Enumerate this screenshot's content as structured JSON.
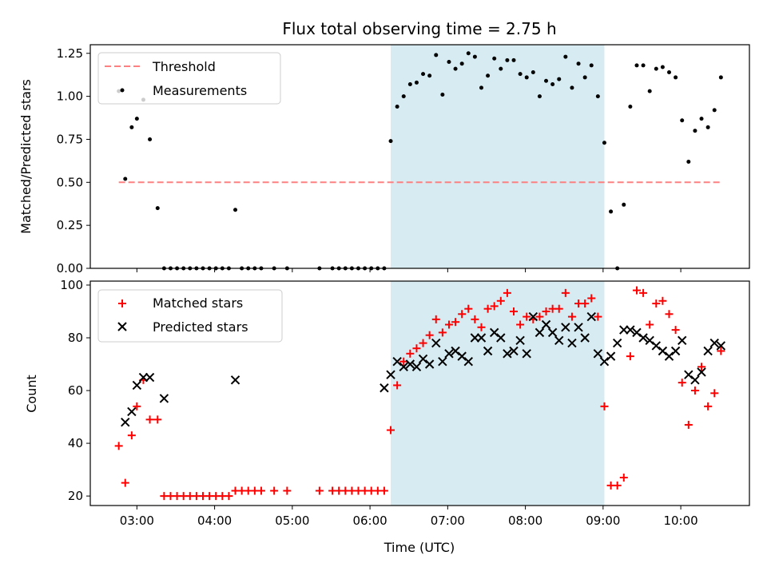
{
  "chart_data": [
    {
      "type": "scatter",
      "title": "Flux total observing time = 2.75 h",
      "xlabel": "",
      "ylabel": "Matched/Predicted stars",
      "xlim": [
        "02:24",
        "10:53"
      ],
      "ylim": [
        0,
        1.3
      ],
      "yticks": [
        "0.00",
        "0.25",
        "0.50",
        "0.75",
        "1.00",
        "1.25"
      ],
      "highlight_span": [
        "06:16",
        "09:01"
      ],
      "highlight_color": "#add8e6",
      "legend": {
        "position": "top-left",
        "entries": [
          "Threshold",
          "Measurements"
        ]
      },
      "threshold": {
        "name": "Threshold",
        "value": 0.5,
        "x_range": [
          "02:46",
          "10:32"
        ],
        "color": "#ff8080",
        "style": "dashed"
      },
      "series": [
        {
          "name": "Measurements",
          "color": "#000000",
          "marker": "dot",
          "x": [
            "02:46",
            "02:51",
            "02:56",
            "03:00",
            "03:05",
            "03:10",
            "03:16",
            "03:21",
            "03:26",
            "03:31",
            "03:36",
            "03:41",
            "03:46",
            "03:51",
            "03:56",
            "04:01",
            "04:06",
            "04:11",
            "04:16",
            "04:21",
            "04:26",
            "04:31",
            "04:36",
            "04:46",
            "04:56",
            "05:21",
            "05:31",
            "05:36",
            "05:41",
            "05:46",
            "05:51",
            "05:56",
            "06:01",
            "06:06",
            "06:11",
            "06:16",
            "06:21",
            "06:26",
            "06:31",
            "06:36",
            "06:41",
            "06:46",
            "06:51",
            "06:56",
            "07:01",
            "07:06",
            "07:11",
            "07:16",
            "07:21",
            "07:26",
            "07:31",
            "07:36",
            "07:41",
            "07:46",
            "07:51",
            "07:56",
            "08:01",
            "08:06",
            "08:11",
            "08:16",
            "08:21",
            "08:26",
            "08:31",
            "08:36",
            "08:41",
            "08:46",
            "08:51",
            "08:56",
            "09:01",
            "09:06",
            "09:11",
            "09:16",
            "09:21",
            "09:26",
            "09:31",
            "09:36",
            "09:41",
            "09:46",
            "09:51",
            "09:56",
            "10:01",
            "10:06",
            "10:11",
            "10:16",
            "10:21",
            "10:26",
            "10:31"
          ],
          "y": [
            1.03,
            0.52,
            0.82,
            0.87,
            0.98,
            0.75,
            0.35,
            0.0,
            0.0,
            0.0,
            0.0,
            0.0,
            0.0,
            0.0,
            0.0,
            0.0,
            0.0,
            0.0,
            0.34,
            0.0,
            0.0,
            0.0,
            0.0,
            0.0,
            0.0,
            0.0,
            0.0,
            0.0,
            0.0,
            0.0,
            0.0,
            0.0,
            0.0,
            0.0,
            0.0,
            0.74,
            0.94,
            1.0,
            1.07,
            1.08,
            1.13,
            1.12,
            1.24,
            1.01,
            1.2,
            1.16,
            1.19,
            1.25,
            1.23,
            1.05,
            1.12,
            1.22,
            1.16,
            1.21,
            1.21,
            1.13,
            1.11,
            1.14,
            1.0,
            1.09,
            1.07,
            1.1,
            1.23,
            1.05,
            1.19,
            1.11,
            1.18,
            1.0,
            0.73,
            0.33,
            0.0,
            0.37,
            0.94,
            1.18,
            1.18,
            1.03,
            1.16,
            1.17,
            1.14,
            1.11,
            0.86,
            0.62,
            0.8,
            0.87,
            0.82,
            0.92,
            1.11
          ]
        }
      ]
    },
    {
      "type": "scatter",
      "title": "",
      "xlabel": "Time (UTC)",
      "ylabel": "Count",
      "xlim": [
        "02:24",
        "10:53"
      ],
      "xticks": [
        "03:00",
        "04:00",
        "05:00",
        "06:00",
        "07:00",
        "08:00",
        "09:00",
        "10:00"
      ],
      "ylim": [
        16.4,
        101.5
      ],
      "yticks": [
        "20",
        "40",
        "60",
        "80",
        "100"
      ],
      "highlight_span": [
        "06:16",
        "09:01"
      ],
      "highlight_color": "#add8e6",
      "legend": {
        "position": "top-left",
        "entries": [
          "Matched stars",
          "Predicted stars"
        ]
      },
      "series": [
        {
          "name": "Matched stars",
          "color": "#ff0000",
          "marker": "plus",
          "x": [
            "02:46",
            "02:51",
            "02:56",
            "03:00",
            "03:05",
            "03:10",
            "03:16",
            "03:21",
            "03:26",
            "03:31",
            "03:36",
            "03:41",
            "03:46",
            "03:51",
            "03:56",
            "04:01",
            "04:06",
            "04:11",
            "04:16",
            "04:21",
            "04:26",
            "04:31",
            "04:36",
            "04:46",
            "04:56",
            "05:21",
            "05:31",
            "05:36",
            "05:41",
            "05:46",
            "05:51",
            "05:56",
            "06:01",
            "06:06",
            "06:11",
            "06:16",
            "06:21",
            "06:26",
            "06:31",
            "06:36",
            "06:41",
            "06:46",
            "06:51",
            "06:56",
            "07:01",
            "07:06",
            "07:11",
            "07:16",
            "07:21",
            "07:26",
            "07:31",
            "07:36",
            "07:41",
            "07:46",
            "07:51",
            "07:56",
            "08:01",
            "08:06",
            "08:11",
            "08:16",
            "08:21",
            "08:26",
            "08:31",
            "08:36",
            "08:41",
            "08:46",
            "08:51",
            "08:56",
            "09:01",
            "09:06",
            "09:11",
            "09:16",
            "09:21",
            "09:26",
            "09:31",
            "09:36",
            "09:41",
            "09:46",
            "09:51",
            "09:56",
            "10:01",
            "10:06",
            "10:11",
            "10:16",
            "10:21",
            "10:26",
            "10:31"
          ],
          "y": [
            39,
            25,
            43,
            54,
            64,
            49,
            49,
            20,
            20,
            20,
            20,
            20,
            20,
            20,
            20,
            20,
            20,
            20,
            22,
            22,
            22,
            22,
            22,
            22,
            22,
            22,
            22,
            22,
            22,
            22,
            22,
            22,
            22,
            22,
            22,
            45,
            62,
            71,
            74,
            76,
            78,
            81,
            87,
            82,
            85,
            86,
            89,
            91,
            87,
            84,
            91,
            92,
            94,
            97,
            90,
            85,
            88,
            87,
            88,
            90,
            91,
            91,
            97,
            88,
            93,
            93,
            95,
            88,
            54,
            24,
            24,
            27,
            73,
            98,
            97,
            85,
            93,
            94,
            89,
            83,
            63,
            47,
            60,
            69,
            54,
            59,
            75
          ]
        },
        {
          "name": "Predicted stars",
          "color": "#000000",
          "marker": "x",
          "x": [
            "02:51",
            "02:56",
            "03:00",
            "03:05",
            "03:10",
            "03:21",
            "04:16",
            "06:11",
            "06:16",
            "06:21",
            "06:26",
            "06:31",
            "06:36",
            "06:41",
            "06:46",
            "06:51",
            "06:56",
            "07:01",
            "07:06",
            "07:11",
            "07:16",
            "07:21",
            "07:26",
            "07:31",
            "07:36",
            "07:41",
            "07:46",
            "07:51",
            "07:56",
            "08:01",
            "08:06",
            "08:11",
            "08:16",
            "08:21",
            "08:26",
            "08:31",
            "08:36",
            "08:41",
            "08:46",
            "08:51",
            "08:56",
            "09:01",
            "09:06",
            "09:11",
            "09:16",
            "09:21",
            "09:26",
            "09:31",
            "09:36",
            "09:41",
            "09:46",
            "09:51",
            "09:56",
            "10:01",
            "10:06",
            "10:11",
            "10:16",
            "10:21",
            "10:26",
            "10:31"
          ],
          "y": [
            48,
            52,
            62,
            65,
            65,
            57,
            64,
            61,
            66,
            71,
            69,
            70,
            69,
            72,
            70,
            78,
            71,
            74,
            75,
            73,
            71,
            80,
            80,
            75,
            82,
            80,
            74,
            75,
            79,
            74,
            88,
            82,
            85,
            82,
            79,
            84,
            78,
            84,
            80,
            88,
            74,
            71,
            73,
            78,
            83,
            83,
            82,
            80,
            79,
            77,
            75,
            73,
            75,
            79,
            66,
            64,
            67,
            75,
            78,
            77
          ]
        }
      ]
    }
  ]
}
